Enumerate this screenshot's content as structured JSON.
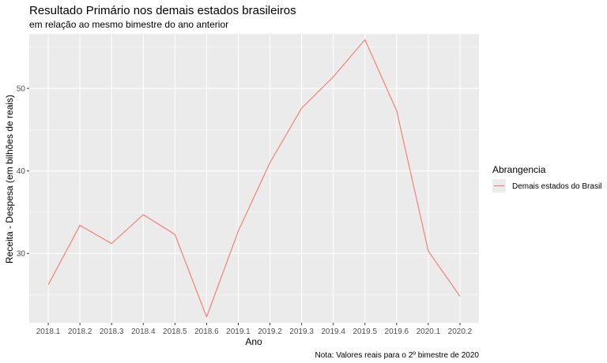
{
  "chart_data": {
    "type": "line",
    "title": "Resultado Primário nos demais estados brasileiros",
    "subtitle": "em relação ao mesmo bimestre do ano anterior",
    "xlabel": "Ano",
    "ylabel": "Receita - Despesa (em bilhões de reais)",
    "caption": "Nota: Valores reais para o 2º bimestre de 2020",
    "categories": [
      "2018.1",
      "2018.2",
      "2018.3",
      "2018.4",
      "2018.5",
      "2018.6",
      "2019.1",
      "2019.2",
      "2019.3",
      "2019.4",
      "2019.5",
      "2019.6",
      "2020.1",
      "2020.2"
    ],
    "series": [
      {
        "name": "Demais estados do Brasil",
        "color": "#F8766D",
        "values": [
          26.2,
          33.4,
          31.2,
          34.7,
          32.3,
          22.3,
          32.7,
          41.0,
          47.6,
          51.4,
          55.9,
          47.3,
          30.3,
          24.8
        ]
      }
    ],
    "yticks": [
      30,
      40,
      50
    ],
    "ylim": [
      21.6,
      56.6
    ],
    "legend": {
      "title": "Abrangencia",
      "position": "right"
    },
    "grid": true
  }
}
